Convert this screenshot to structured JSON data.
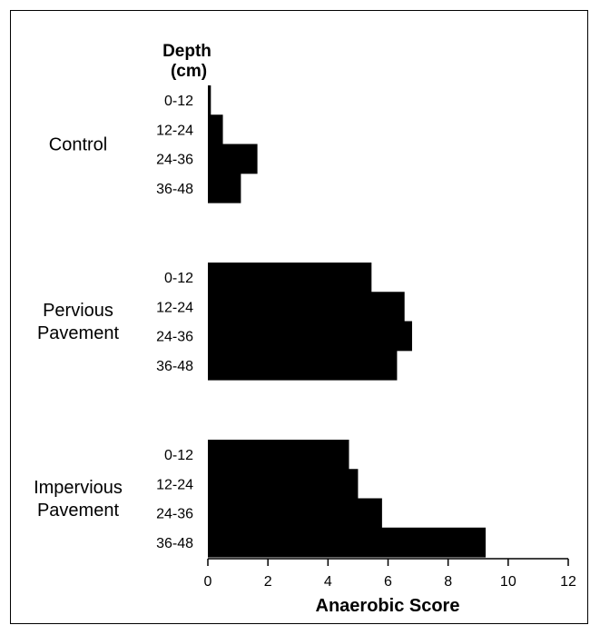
{
  "chart_data": {
    "type": "bar",
    "orientation": "horizontal",
    "depth_label_line1": "Depth",
    "depth_label_line2": "(cm)",
    "xlabel": "Anaerobic Score",
    "xlim": [
      0,
      12
    ],
    "xticks": [
      "0",
      "2",
      "4",
      "6",
      "8",
      "10",
      "12"
    ],
    "bar_color": "#000000",
    "groups": [
      {
        "label_lines": [
          "Control"
        ],
        "categories": [
          "0-12",
          "12-24",
          "24-36",
          "36-48"
        ],
        "values": [
          0.1,
          0.5,
          1.65,
          1.1
        ]
      },
      {
        "label_lines": [
          "Pervious",
          "Pavement"
        ],
        "categories": [
          "0-12",
          "12-24",
          "24-36",
          "36-48"
        ],
        "values": [
          5.45,
          6.55,
          6.8,
          6.3
        ]
      },
      {
        "label_lines": [
          "Impervious",
          "Pavement"
        ],
        "categories": [
          "0-12",
          "12-24",
          "24-36",
          "36-48"
        ],
        "values": [
          4.7,
          5.0,
          5.8,
          9.25
        ]
      }
    ]
  }
}
